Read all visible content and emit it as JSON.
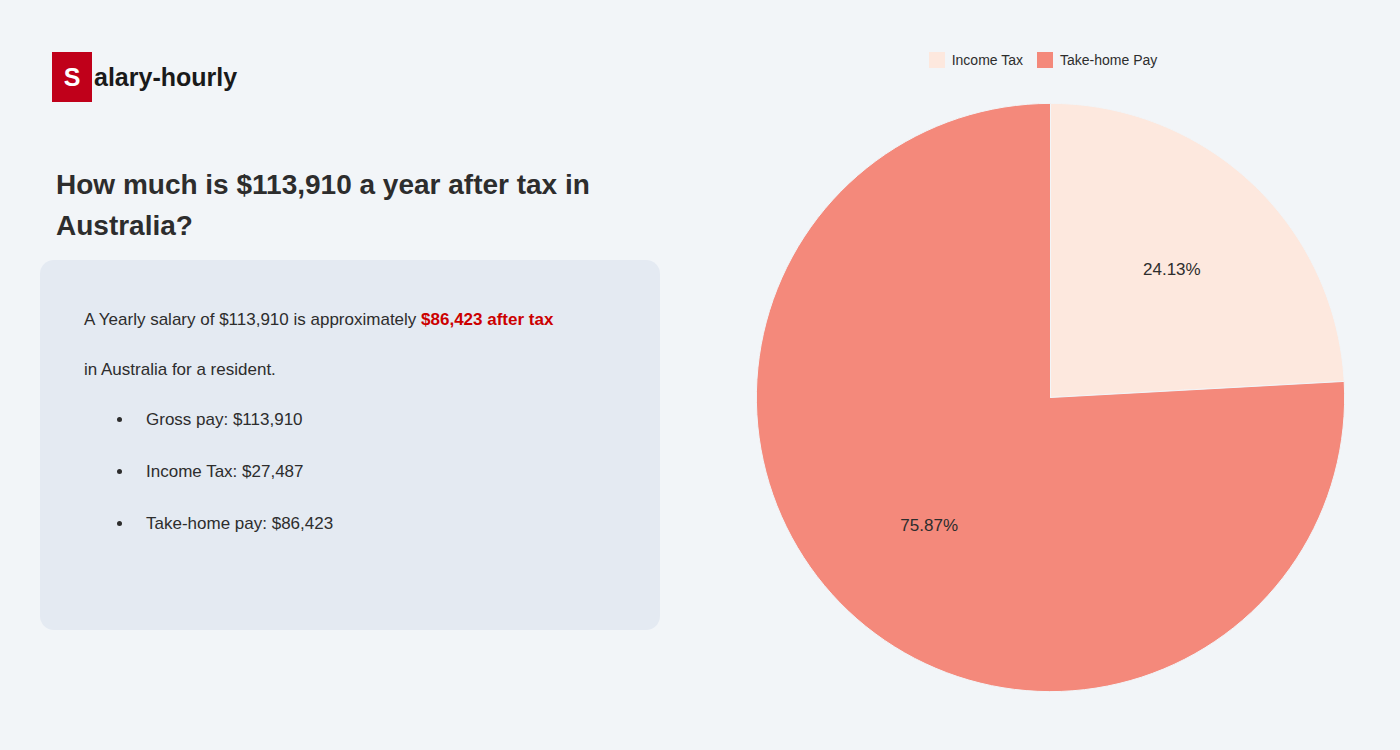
{
  "chart_data": {
    "type": "pie",
    "title": "How much is $113,910 a year after tax in\nAustralia?",
    "categories": [
      "Income Tax",
      "Take-home Pay"
    ],
    "values": [
      24.13,
      75.87
    ],
    "value_labels": [
      "24.13%",
      "75.87%"
    ],
    "colors": [
      "#fde8de",
      "#f4897b"
    ],
    "data_labels": true,
    "legend": "top",
    "annotations": [
      "S",
      "alary-hourly",
      "A Yearly salary of $113,910 is approximately ",
      "$86,423 after tax",
      "in Australia for a resident.",
      "Gross pay: $113,910",
      "Income Tax: $27,487",
      "Take-home pay: $86,423"
    ]
  }
}
